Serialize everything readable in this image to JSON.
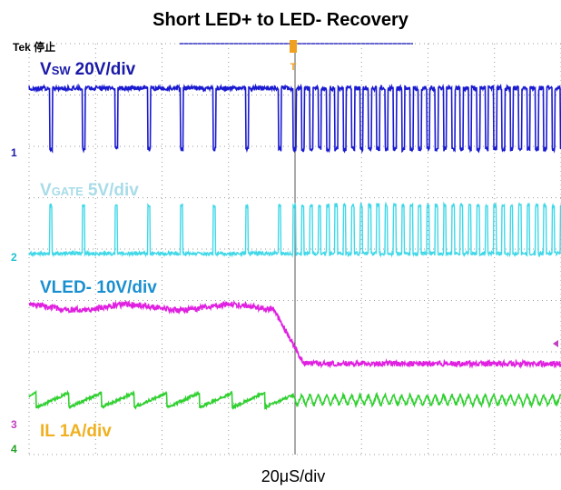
{
  "header": {
    "title": "Short LED+ to LED- Recovery",
    "scope_status": "Tek 停止"
  },
  "channels": [
    {
      "number": "1",
      "symbol": "V",
      "subscript": "SW",
      "scale": "20V/div"
    },
    {
      "number": "2",
      "symbol": "V",
      "subscript": "GATE",
      "scale": "5V/div"
    },
    {
      "number": "3",
      "label": "VLED- 10V/div"
    },
    {
      "number": "4",
      "label": "IL 1A/div"
    }
  ],
  "trigger": "T",
  "timebase": "20μS/div"
}
